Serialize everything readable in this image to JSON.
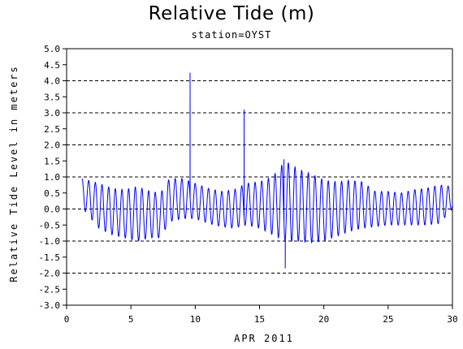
{
  "chart_data": {
    "type": "line",
    "title": "Relative Tide (m)",
    "subtitle": "station=OYST",
    "xlabel": "APR 2011",
    "ylabel": "Relative Tide Level in meters",
    "xlim": [
      0,
      30
    ],
    "ylim": [
      -3.0,
      5.0
    ],
    "xticks": [
      0,
      5,
      10,
      15,
      20,
      25,
      30
    ],
    "xtick_labels": [
      "0",
      "5",
      "10",
      "15",
      "20",
      "25",
      "30"
    ],
    "yticks": [
      5.0,
      4.5,
      4.0,
      3.5,
      3.0,
      2.5,
      2.0,
      1.5,
      1.0,
      0.5,
      0.0,
      -0.5,
      -1.0,
      -1.5,
      -2.0,
      -2.5,
      -3.0
    ],
    "ytick_labels": [
      "5.0",
      "4.5",
      "4.0",
      "3.5",
      "3.0",
      "2.5",
      "2.0",
      "1.5",
      "1.0",
      "0.5",
      "0.0",
      "-0.5",
      "-1.0",
      "-1.5",
      "-2.0",
      "-2.5",
      "-3.0"
    ],
    "gridlines_y": [
      5.0,
      4.0,
      3.0,
      2.0,
      1.0,
      0.0,
      -1.0,
      -2.0,
      -3.0
    ],
    "grid_style": "dashed",
    "series": [
      {
        "color": "#0000ff",
        "x_start": 1.2,
        "x_end": 30.0,
        "period_days": 0.5175,
        "envelope": [
          [
            1.2,
            0.95,
            0.05
          ],
          [
            2.5,
            0.8,
            -0.6
          ],
          [
            3.5,
            0.65,
            -0.8
          ],
          [
            4.5,
            0.6,
            -0.9
          ],
          [
            5.5,
            0.7,
            -1.0
          ],
          [
            6.5,
            0.55,
            -0.9
          ],
          [
            7.3,
            0.5,
            -0.9
          ],
          [
            8.0,
            0.95,
            -0.4
          ],
          [
            9.0,
            0.95,
            -0.3
          ],
          [
            10.0,
            0.8,
            -0.3
          ],
          [
            11.0,
            0.65,
            -0.45
          ],
          [
            12.0,
            0.55,
            -0.55
          ],
          [
            13.0,
            0.6,
            -0.6
          ],
          [
            14.0,
            0.8,
            -0.5
          ],
          [
            15.0,
            0.85,
            -0.6
          ],
          [
            16.0,
            1.0,
            -0.8
          ],
          [
            17.0,
            1.5,
            -1.0
          ],
          [
            18.0,
            1.25,
            -1.0
          ],
          [
            19.0,
            1.1,
            -1.05
          ],
          [
            20.0,
            0.9,
            -1.0
          ],
          [
            21.0,
            0.85,
            -0.85
          ],
          [
            22.0,
            0.9,
            -0.7
          ],
          [
            23.0,
            0.85,
            -0.6
          ],
          [
            24.0,
            0.55,
            -0.55
          ],
          [
            25.0,
            0.55,
            -0.5
          ],
          [
            26.0,
            0.5,
            -0.5
          ],
          [
            27.0,
            0.6,
            -0.5
          ],
          [
            28.0,
            0.65,
            -0.5
          ],
          [
            29.0,
            0.75,
            -0.45
          ],
          [
            30.0,
            0.7,
            0.0
          ]
        ],
        "spikes": [
          {
            "x": 9.6,
            "y": 4.25
          },
          {
            "x": 13.8,
            "y": 3.1
          },
          {
            "x": 16.9,
            "y": 1.55
          },
          {
            "x": 17.0,
            "y": -1.85
          }
        ]
      }
    ]
  }
}
